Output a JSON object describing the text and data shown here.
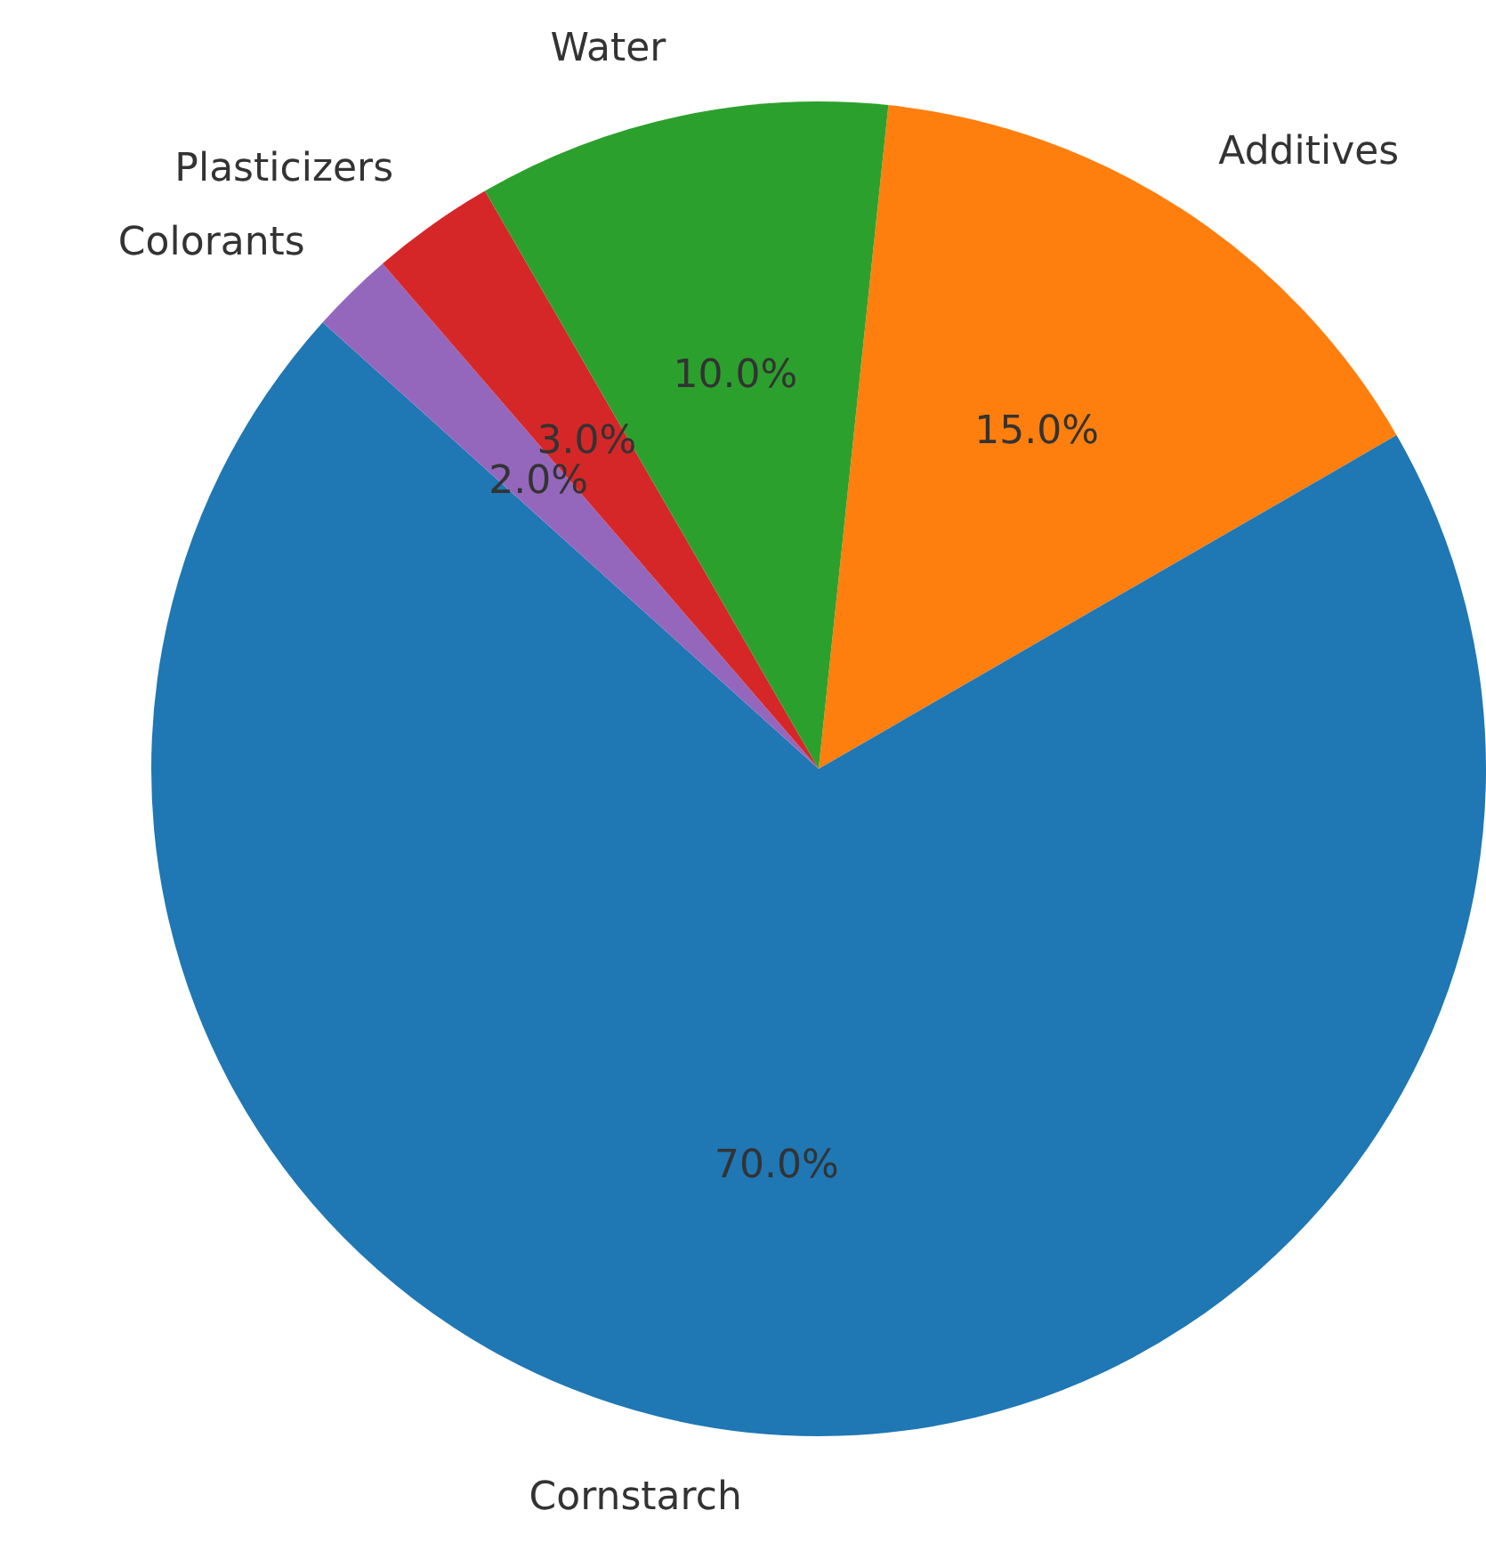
{
  "chart_data": {
    "type": "pie",
    "categories": [
      "Additives",
      "Cornstarch",
      "Colorants",
      "Plasticizers",
      "Water"
    ],
    "values": [
      15,
      70,
      2,
      3,
      10
    ],
    "colors": [
      "#ff7f0e",
      "#1f77b4",
      "#9467bd",
      "#d62728",
      "#2ca02c"
    ],
    "value_labels": [
      "15.0%",
      "70.0%",
      "2.0%",
      "3.0%",
      "10.0%"
    ]
  }
}
